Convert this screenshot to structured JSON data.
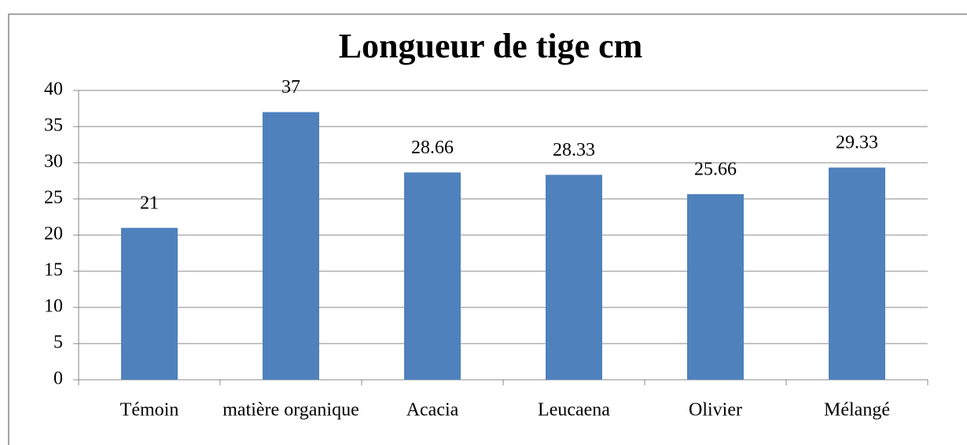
{
  "chart_data": {
    "type": "bar",
    "title": "Longueur de tige cm",
    "categories": [
      "Témoin",
      "matière organique",
      "Acacia",
      "Leucaena",
      "Olivier",
      "Mélangé"
    ],
    "values": [
      21,
      37,
      28.66,
      28.33,
      25.66,
      29.33
    ],
    "color": "#4f81bd",
    "ylim": [
      0,
      40
    ],
    "yticks": [
      0,
      5,
      10,
      15,
      20,
      25,
      30,
      35,
      40
    ],
    "grid": true
  }
}
